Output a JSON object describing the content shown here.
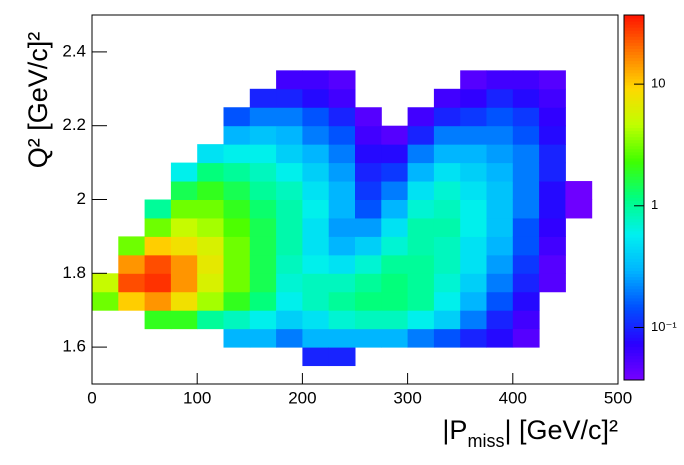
{
  "chart_data": {
    "type": "heatmap",
    "x_label": {
      "main": "|P",
      "sub": "miss",
      "rest": "| [GeV/c]²"
    },
    "y_label": "Q² [GeV/c]²",
    "xlim": [
      0,
      500
    ],
    "xticks": [
      0,
      100,
      200,
      300,
      400,
      500
    ],
    "ylim": [
      1.5,
      2.5
    ],
    "yticks": [
      1.6,
      1.8,
      2,
      2.2,
      2.4
    ],
    "xbins": [
      0,
      25,
      50,
      75,
      100,
      125,
      150,
      175,
      200,
      225,
      250,
      275,
      300,
      325,
      350,
      375,
      400,
      425,
      450,
      475,
      500
    ],
    "ybins": [
      1.5,
      1.55,
      1.6,
      1.65,
      1.7,
      1.75,
      1.8,
      1.85,
      1.9,
      1.95,
      2,
      2.05,
      2.1,
      2.15,
      2.2,
      2.25,
      2.3,
      2.35,
      2.4,
      2.45,
      2.5
    ],
    "zlim": [
      0.037,
      37
    ],
    "zlog": true,
    "zticks": [
      {
        "value": 0.1,
        "label": "10⁻¹"
      },
      1,
      10
    ],
    "palette": [
      "#7700ff",
      "#2a00ff",
      "#0050ff",
      "#00b4ff",
      "#00f0f0",
      "#00ff80",
      "#40ff00",
      "#c0ff00",
      "#ffd800",
      "#ff7800",
      "#ff1400"
    ],
    "z": [
      [
        null,
        null,
        null,
        null,
        3,
        5,
        null,
        null,
        null,
        null,
        null,
        null,
        null,
        null,
        null,
        null,
        null,
        null,
        null,
        null
      ],
      [
        null,
        null,
        null,
        null,
        10,
        25,
        15,
        3,
        null,
        null,
        null,
        null,
        null,
        null,
        null,
        null,
        null,
        null,
        null,
        null
      ],
      [
        null,
        null,
        null,
        2,
        15,
        30,
        25,
        10,
        3,
        1,
        null,
        null,
        null,
        null,
        null,
        null,
        null,
        null,
        null,
        null
      ],
      [
        null,
        null,
        null,
        2,
        8,
        15,
        15,
        8,
        5,
        3,
        1.5,
        0.6,
        null,
        null,
        null,
        null,
        null,
        null,
        null,
        null
      ],
      [
        null,
        null,
        null,
        1,
        4,
        6,
        7,
        6,
        4,
        3,
        2,
        1.2,
        0.5,
        null,
        null,
        null,
        null,
        null,
        null,
        null
      ],
      [
        null,
        null,
        0.3,
        0.8,
        2,
        3,
        3,
        3,
        2.5,
        2,
        1.5,
        1,
        0.6,
        0.3,
        0.15,
        null,
        null,
        null,
        null,
        null
      ],
      [
        null,
        null,
        0.3,
        0.6,
        1.2,
        1.5,
        1.5,
        1.5,
        1.5,
        1.3,
        1,
        0.8,
        0.6,
        0.35,
        0.2,
        0.1,
        null,
        null,
        null,
        null
      ],
      [
        null,
        null,
        0.2,
        0.4,
        0.6,
        0.7,
        0.8,
        0.9,
        0.9,
        0.9,
        0.8,
        0.6,
        0.4,
        0.3,
        0.2,
        0.1,
        0.06,
        null,
        null,
        null
      ],
      [
        null,
        0.1,
        0.3,
        0.5,
        0.8,
        0.8,
        0.6,
        0.5,
        0.5,
        0.6,
        0.5,
        0.4,
        0.3,
        0.2,
        0.15,
        0.08,
        0.06,
        null,
        null,
        null
      ],
      [
        null,
        0.1,
        0.3,
        0.7,
        1,
        0.8,
        0.5,
        0.3,
        0.25,
        0.3,
        0.3,
        0.25,
        0.2,
        0.15,
        0.1,
        0.06,
        0.05,
        null,
        null,
        null
      ],
      [
        null,
        null,
        0.3,
        0.8,
        1.2,
        1,
        0.7,
        0.4,
        0.25,
        0.15,
        0.12,
        0.1,
        0.08,
        0.06,
        0.05,
        null,
        null,
        null,
        null,
        null
      ],
      [
        null,
        null,
        0.3,
        0.8,
        1.2,
        1.2,
        1,
        0.7,
        0.5,
        0.3,
        0.2,
        0.12,
        0.08,
        0.05,
        null,
        null,
        null,
        null,
        null,
        null
      ],
      [
        null,
        null,
        0.2,
        0.6,
        1,
        1,
        1,
        0.9,
        0.9,
        0.7,
        0.5,
        0.3,
        0.2,
        0.1,
        0.06,
        null,
        null,
        null,
        null,
        null
      ],
      [
        null,
        null,
        0.15,
        0.4,
        0.6,
        0.7,
        0.8,
        0.8,
        0.9,
        0.8,
        0.7,
        0.5,
        0.3,
        0.2,
        0.1,
        0.06,
        null,
        null,
        null,
        null
      ],
      [
        null,
        null,
        0.1,
        0.2,
        0.3,
        0.4,
        0.5,
        0.5,
        0.6,
        0.6,
        0.5,
        0.4,
        0.3,
        0.2,
        0.12,
        0.07,
        0.05,
        null,
        null,
        null
      ],
      [
        null,
        null,
        0.08,
        0.1,
        0.15,
        0.2,
        0.25,
        0.3,
        0.35,
        0.35,
        0.35,
        0.3,
        0.25,
        0.2,
        0.15,
        0.1,
        0.06,
        null,
        null,
        null
      ],
      [
        null,
        null,
        0.05,
        0.06,
        0.08,
        0.1,
        0.12,
        0.15,
        0.15,
        0.2,
        0.2,
        0.2,
        0.2,
        0.15,
        0.12,
        0.08,
        0.06,
        null,
        null,
        null
      ],
      [
        null,
        null,
        null,
        null,
        null,
        0.05,
        0.05,
        0.06,
        0.07,
        0.08,
        0.08,
        0.1,
        0.1,
        0.08,
        0.07,
        0.06,
        0.05,
        null,
        null,
        null
      ],
      [
        null,
        null,
        null,
        null,
        null,
        null,
        null,
        null,
        null,
        0.04,
        0.04,
        null,
        null,
        null,
        null,
        null,
        null,
        null,
        null,
        null
      ],
      [
        null,
        null,
        null,
        null,
        null,
        null,
        null,
        null,
        null,
        null,
        null,
        null,
        null,
        null,
        null,
        null,
        null,
        null,
        null,
        null
      ]
    ]
  }
}
